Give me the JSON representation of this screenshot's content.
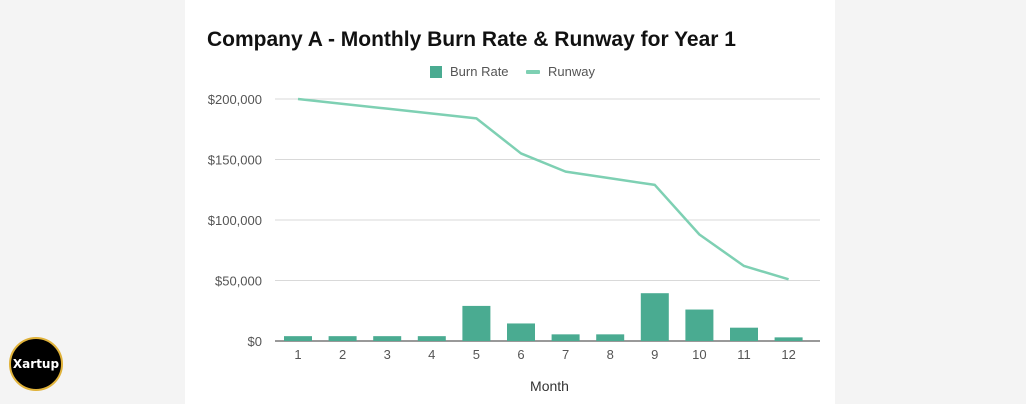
{
  "colors": {
    "bar": "#4aab91",
    "line": "#7ed0b3",
    "grid": "#d9d9d9",
    "background": "#f4f4f4"
  },
  "logo": {
    "text": "Xartup"
  },
  "chart_data": {
    "type": "bar",
    "title": "Company A - Monthly Burn Rate & Runway for Year 1",
    "xlabel": "Month",
    "ylabel": "",
    "ylim": [
      0,
      200000
    ],
    "yticks": [
      "$0",
      "$50,000",
      "$100,000",
      "$150,000",
      "$200,000"
    ],
    "ytick_values": [
      0,
      50000,
      100000,
      150000,
      200000
    ],
    "categories": [
      "1",
      "2",
      "3",
      "4",
      "5",
      "6",
      "7",
      "8",
      "9",
      "10",
      "11",
      "12"
    ],
    "legend_position": "top-center",
    "grid": true,
    "series": [
      {
        "name": "Burn Rate",
        "type": "bar",
        "values": [
          4000,
          4000,
          4000,
          4000,
          29000,
          14500,
          5500,
          5500,
          39500,
          26000,
          11000,
          3000
        ]
      },
      {
        "name": "Runway",
        "type": "line",
        "values": [
          200000,
          196000,
          192000,
          188000,
          184000,
          155000,
          140000,
          134500,
          129000,
          88000,
          62000,
          51000
        ]
      }
    ]
  }
}
